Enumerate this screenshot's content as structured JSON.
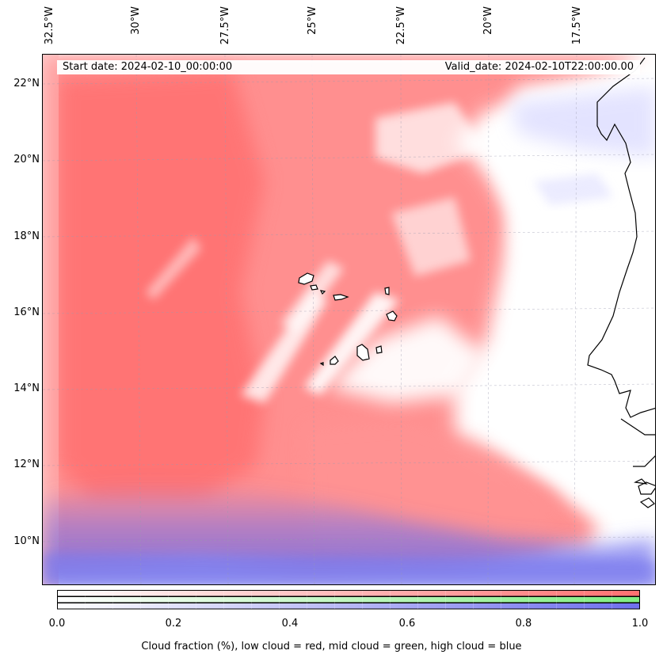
{
  "header": {
    "start_date": "Start date: 2024-02-10_00:00:00",
    "valid_date": "Valid_date: 2024-02-10T22:00:00.00"
  },
  "map": {
    "longitude_labels": [
      "32.5°W",
      "30°W",
      "27.5°W",
      "25°W",
      "22.5°W",
      "20°W",
      "17.5°W"
    ],
    "latitude_labels": [
      "22°N",
      "20°N",
      "18°N",
      "16°N",
      "14°N",
      "12°N",
      "10°N"
    ],
    "layers": [
      {
        "name": "low cloud",
        "color": "#ff7a7a"
      },
      {
        "name": "mid cloud",
        "color": "#8ef28e"
      },
      {
        "name": "high cloud",
        "color": "#7a7aff"
      }
    ]
  },
  "colorbar": {
    "ticks": [
      "0.0",
      "0.2",
      "0.4",
      "0.6",
      "0.8",
      "1.0"
    ],
    "label": "Cloud fraction (%), low cloud = red, mid cloud = green, high cloud = blue",
    "low_color": "#ff7070",
    "mid_color": "#80ee80",
    "high_color": "#6f6fee"
  }
}
